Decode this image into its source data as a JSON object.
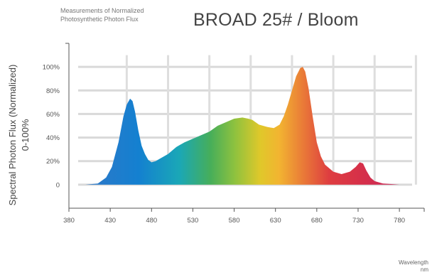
{
  "header": {
    "note_line1": "Measurements of Normalized",
    "note_line2": "Photosynthetic Photon Flux"
  },
  "chart_data": {
    "type": "area",
    "title": "BROAD 25# / Bloom",
    "ylabel_line1": "Spectral Photon Flux (Normalized)",
    "ylabel_line2": "0-100%",
    "xlabel_line1": "Wavelength",
    "xlabel_line2": "nm",
    "xlim": [
      380,
      810
    ],
    "ylim": [
      -20,
      120
    ],
    "x_ticks": [
      380,
      430,
      480,
      530,
      580,
      630,
      680,
      730,
      780
    ],
    "x_tick_labels": [
      "380",
      "430",
      "480",
      "530",
      "580",
      "630",
      "680",
      "730",
      "780"
    ],
    "y_ticks": [
      0,
      20,
      40,
      60,
      80,
      100
    ],
    "y_tick_labels": [
      "0",
      "20%",
      "40%",
      "60%",
      "80%",
      "100%"
    ],
    "grid": true,
    "fill": "visible-spectrum gradient",
    "series": [
      {
        "x": [
          400,
          415,
          425,
          432,
          440,
          446,
          450,
          454,
          457,
          460,
          464,
          468,
          472,
          476,
          480,
          485,
          490,
          500,
          510,
          520,
          530,
          540,
          550,
          560,
          570,
          580,
          590,
          597,
          602,
          610,
          620,
          628,
          635,
          640,
          645,
          650,
          655,
          660,
          663,
          666,
          670,
          675,
          680,
          685,
          690,
          700,
          710,
          720,
          727,
          732,
          736,
          740,
          745,
          750,
          760,
          770,
          780
        ],
        "y": [
          0,
          1,
          6,
          15,
          36,
          58,
          68,
          73,
          71,
          62,
          46,
          33,
          26,
          21,
          19,
          20,
          22,
          26,
          32,
          36,
          39,
          42,
          45,
          50,
          53,
          56,
          57,
          56,
          55,
          51,
          49,
          48,
          51,
          58,
          68,
          80,
          92,
          99,
          100,
          96,
          82,
          58,
          36,
          24,
          17,
          11,
          9,
          11,
          15,
          19,
          18,
          12,
          6,
          3,
          1,
          0.5,
          0
        ]
      }
    ]
  }
}
